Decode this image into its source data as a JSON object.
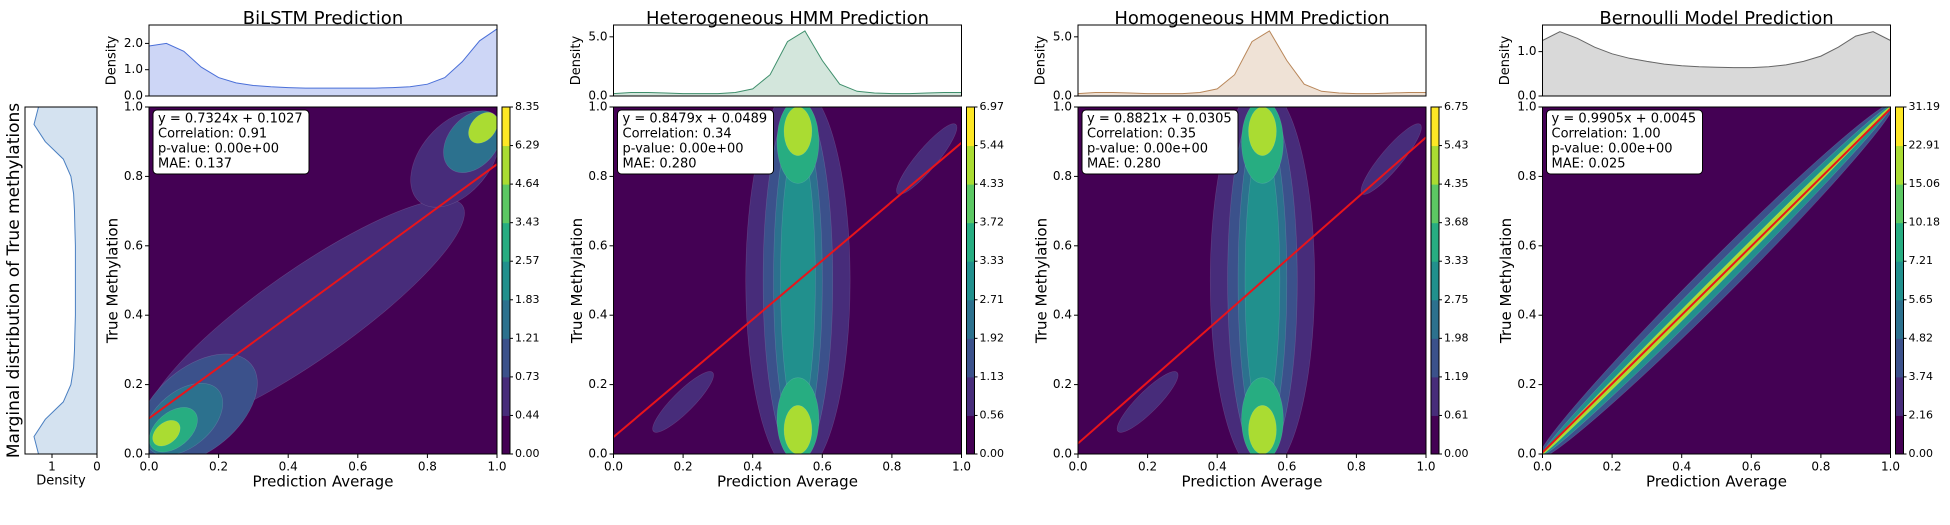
{
  "chart_data": [
    {
      "type": "density",
      "ylabel": "Marginal distribution of True methylations",
      "xlabel": "Density",
      "y": [
        0,
        0.05,
        0.1,
        0.15,
        0.2,
        0.25,
        0.3,
        0.35,
        0.4,
        0.45,
        0.5,
        0.55,
        0.6,
        0.65,
        0.7,
        0.75,
        0.8,
        0.85,
        0.9,
        0.95,
        1.0
      ],
      "values": [
        1.3,
        1.4,
        1.15,
        0.75,
        0.58,
        0.52,
        0.5,
        0.49,
        0.48,
        0.48,
        0.48,
        0.48,
        0.48,
        0.49,
        0.5,
        0.52,
        0.58,
        0.75,
        1.15,
        1.4,
        1.3
      ],
      "xlim": [
        1.6,
        0
      ],
      "xticks": [
        1,
        0
      ],
      "ylim": [
        0,
        1
      ],
      "color": "#4a7fc1",
      "fill": "#d4e2f0"
    },
    {
      "type": "kde",
      "title": "BiLSTM Prediction",
      "xlabel": "Prediction Average",
      "ylabel": "True Methylation",
      "xlim": [
        0,
        1
      ],
      "ylim": [
        0,
        1
      ],
      "xticks": [
        {
          "value": 0,
          "label": "0.0"
        },
        {
          "value": 0.2,
          "label": "0.2"
        },
        {
          "value": 0.4,
          "label": "0.4"
        },
        {
          "value": 0.6,
          "label": "0.6"
        },
        {
          "value": 0.8,
          "label": "0.8"
        },
        {
          "value": 1,
          "label": "1.0"
        }
      ],
      "yticks": [
        {
          "value": 0,
          "label": "0.0"
        },
        {
          "value": 0.2,
          "label": "0.2"
        },
        {
          "value": 0.4,
          "label": "0.4"
        },
        {
          "value": 0.6,
          "label": "0.6"
        },
        {
          "value": 0.8,
          "label": "0.8"
        },
        {
          "value": 1,
          "label": "1.0"
        }
      ],
      "annotation": [
        "y = 0.7324x + 0.1027",
        "Correlation: 0.91",
        "p-value: 0.00e+00",
        "MAE: 0.137"
      ],
      "fit": {
        "slope": 0.7324,
        "intercept": 0.1027,
        "color": "#e8141b"
      },
      "colorbar": {
        "ticks": [
          {
            "value": 0,
            "label": "0.00"
          },
          0.44,
          0.73,
          1.21,
          1.83,
          2.57,
          3.43,
          4.64,
          6.29,
          8.35
        ]
      },
      "marginal": {
        "ylabel": "Density",
        "x": [
          0,
          0.05,
          0.1,
          0.15,
          0.2,
          0.25,
          0.3,
          0.35,
          0.4,
          0.45,
          0.5,
          0.55,
          0.6,
          0.65,
          0.7,
          0.75,
          0.8,
          0.85,
          0.9,
          0.95,
          1.0
        ],
        "values": [
          1.9,
          2.0,
          1.7,
          1.1,
          0.7,
          0.5,
          0.4,
          0.35,
          0.32,
          0.3,
          0.3,
          0.3,
          0.3,
          0.3,
          0.32,
          0.35,
          0.45,
          0.7,
          1.3,
          2.1,
          2.55
        ],
        "ylim": [
          0,
          2.7
        ],
        "yticks": [
          {
            "value": 0,
            "label": "0.0"
          },
          {
            "value": 1,
            "label": "1.0"
          },
          {
            "value": 2,
            "label": "2.0"
          }
        ],
        "color": "#4a6fd8",
        "fill": "#cdd6f6"
      }
    },
    {
      "type": "kde",
      "title": "Heterogeneous HMM Prediction",
      "xlabel": "Prediction Average",
      "ylabel": "True Methylation",
      "xlim": [
        0,
        1
      ],
      "ylim": [
        0,
        1
      ],
      "xticks": [
        {
          "value": 0,
          "label": "0.0"
        },
        {
          "value": 0.2,
          "label": "0.2"
        },
        {
          "value": 0.4,
          "label": "0.4"
        },
        {
          "value": 0.6,
          "label": "0.6"
        },
        {
          "value": 0.8,
          "label": "0.8"
        },
        {
          "value": 1,
          "label": "1.0"
        }
      ],
      "yticks": [
        {
          "value": 0,
          "label": "0.0"
        },
        {
          "value": 0.2,
          "label": "0.2"
        },
        {
          "value": 0.4,
          "label": "0.4"
        },
        {
          "value": 0.6,
          "label": "0.6"
        },
        {
          "value": 0.8,
          "label": "0.8"
        },
        {
          "value": 1,
          "label": "1.0"
        }
      ],
      "annotation": [
        "y = 0.8479x + 0.0489",
        "Correlation: 0.34",
        "p-value: 0.00e+00",
        "MAE: 0.280"
      ],
      "fit": {
        "slope": 0.8479,
        "intercept": 0.0489,
        "color": "#e8141b"
      },
      "colorbar": {
        "ticks": [
          {
            "value": 0,
            "label": "0.00"
          },
          0.56,
          1.13,
          1.92,
          2.71,
          3.33,
          3.72,
          4.33,
          5.44,
          6.97
        ]
      },
      "marginal": {
        "ylabel": "Density",
        "x": [
          0,
          0.05,
          0.1,
          0.15,
          0.2,
          0.25,
          0.3,
          0.35,
          0.4,
          0.45,
          0.5,
          0.55,
          0.6,
          0.65,
          0.7,
          0.75,
          0.8,
          0.85,
          0.9,
          0.95,
          1.0
        ],
        "values": [
          0.2,
          0.3,
          0.3,
          0.25,
          0.2,
          0.2,
          0.2,
          0.3,
          0.6,
          1.8,
          4.6,
          5.5,
          3.0,
          1.0,
          0.4,
          0.25,
          0.2,
          0.2,
          0.25,
          0.3,
          0.3
        ],
        "ylim": [
          0,
          6
        ],
        "yticks": [
          {
            "value": 0,
            "label": "0.0"
          },
          {
            "value": 5,
            "label": "5.0"
          }
        ],
        "color": "#3f8f6c",
        "fill": "#d3e6dc"
      }
    },
    {
      "type": "kde",
      "title": "Homogeneous HMM Prediction",
      "xlabel": "Prediction Average",
      "ylabel": "True Methylation",
      "xlim": [
        0,
        1
      ],
      "ylim": [
        0,
        1
      ],
      "xticks": [
        {
          "value": 0,
          "label": "0.0"
        },
        {
          "value": 0.2,
          "label": "0.2"
        },
        {
          "value": 0.4,
          "label": "0.4"
        },
        {
          "value": 0.6,
          "label": "0.6"
        },
        {
          "value": 0.8,
          "label": "0.8"
        },
        {
          "value": 1,
          "label": "1.0"
        }
      ],
      "yticks": [
        {
          "value": 0,
          "label": "0.0"
        },
        {
          "value": 0.2,
          "label": "0.2"
        },
        {
          "value": 0.4,
          "label": "0.4"
        },
        {
          "value": 0.6,
          "label": "0.6"
        },
        {
          "value": 0.8,
          "label": "0.8"
        },
        {
          "value": 1,
          "label": "1.0"
        }
      ],
      "annotation": [
        "y = 0.8821x + 0.0305",
        "Correlation: 0.35",
        "p-value: 0.00e+00",
        "MAE: 0.280"
      ],
      "fit": {
        "slope": 0.8821,
        "intercept": 0.0305,
        "color": "#e8141b"
      },
      "colorbar": {
        "ticks": [
          {
            "value": 0,
            "label": "0.00"
          },
          0.61,
          1.19,
          1.98,
          2.75,
          3.33,
          3.68,
          4.35,
          5.43,
          6.75
        ]
      },
      "marginal": {
        "ylabel": "Density",
        "x": [
          0,
          0.05,
          0.1,
          0.15,
          0.2,
          0.25,
          0.3,
          0.35,
          0.4,
          0.45,
          0.5,
          0.55,
          0.6,
          0.65,
          0.7,
          0.75,
          0.8,
          0.85,
          0.9,
          0.95,
          1.0
        ],
        "values": [
          0.2,
          0.3,
          0.3,
          0.25,
          0.2,
          0.2,
          0.2,
          0.3,
          0.6,
          1.8,
          4.6,
          5.5,
          3.0,
          1.0,
          0.4,
          0.25,
          0.2,
          0.2,
          0.25,
          0.3,
          0.3
        ],
        "ylim": [
          0,
          6
        ],
        "yticks": [
          {
            "value": 0,
            "label": "0.0"
          },
          {
            "value": 5,
            "label": "5.0"
          }
        ],
        "color": "#b9875a",
        "fill": "#efe2d6"
      }
    },
    {
      "type": "kde",
      "title": "Bernoulli Model Prediction",
      "xlabel": "Prediction Average",
      "ylabel": "True Methylation",
      "xlim": [
        0,
        1
      ],
      "ylim": [
        0,
        1
      ],
      "xticks": [
        {
          "value": 0,
          "label": "0.0"
        },
        {
          "value": 0.2,
          "label": "0.2"
        },
        {
          "value": 0.4,
          "label": "0.4"
        },
        {
          "value": 0.6,
          "label": "0.6"
        },
        {
          "value": 0.8,
          "label": "0.8"
        },
        {
          "value": 1,
          "label": "1.0"
        }
      ],
      "yticks": [
        {
          "value": 0,
          "label": "0.0"
        },
        {
          "value": 0.2,
          "label": "0.2"
        },
        {
          "value": 0.4,
          "label": "0.4"
        },
        {
          "value": 0.6,
          "label": "0.6"
        },
        {
          "value": 0.8,
          "label": "0.8"
        },
        {
          "value": 1,
          "label": "1.0"
        }
      ],
      "annotation": [
        "y = 0.9905x + 0.0045",
        "Correlation: 1.00",
        "p-value: 0.00e+00",
        "MAE: 0.025"
      ],
      "fit": {
        "slope": 0.9905,
        "intercept": 0.0045,
        "color": "#e8141b"
      },
      "colorbar": {
        "ticks": [
          {
            "value": 0,
            "label": "0.00"
          },
          2.16,
          3.74,
          4.82,
          5.65,
          7.21,
          10.18,
          15.06,
          22.91,
          31.19
        ]
      },
      "marginal": {
        "ylabel": "Density",
        "x": [
          0,
          0.05,
          0.1,
          0.15,
          0.2,
          0.25,
          0.3,
          0.35,
          0.4,
          0.45,
          0.5,
          0.55,
          0.6,
          0.65,
          0.7,
          0.75,
          0.8,
          0.85,
          0.9,
          0.95,
          1.0
        ],
        "values": [
          1.25,
          1.45,
          1.3,
          1.1,
          0.95,
          0.85,
          0.78,
          0.72,
          0.68,
          0.66,
          0.65,
          0.64,
          0.64,
          0.66,
          0.7,
          0.78,
          0.9,
          1.1,
          1.35,
          1.45,
          1.25
        ],
        "ylim": [
          0,
          1.6
        ],
        "yticks": [
          {
            "value": 0,
            "label": "0.0"
          },
          {
            "value": 1,
            "label": "1.0"
          }
        ],
        "color": "#666666",
        "fill": "#d9d9d9"
      }
    }
  ]
}
